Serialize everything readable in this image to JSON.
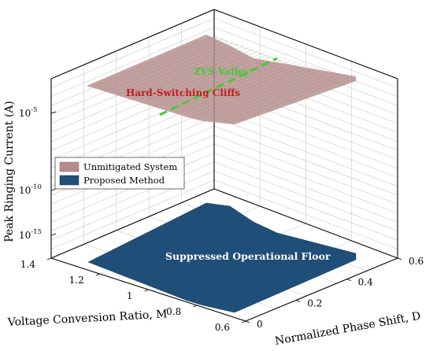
{
  "chart_data": {
    "type": "surface3d",
    "xlabel": "Normalized Phase Shift, D",
    "ylabel": "Voltage Conversion Ratio, M",
    "zlabel": "Peak Ringing Current (A)",
    "x_ticks": [
      "0",
      "0.2",
      "0.4",
      "0.6"
    ],
    "y_ticks": [
      "0.6",
      "0.8",
      "1",
      "1.2",
      "1.4"
    ],
    "z_ticks": [
      {
        "base": "10",
        "exp": "-15"
      },
      {
        "base": "10",
        "exp": "-10"
      },
      {
        "base": "10",
        "exp": "-5"
      }
    ],
    "zscale": "log",
    "xlim": [
      0,
      0.6
    ],
    "ylim": [
      0.6,
      1.4
    ],
    "zlim_log10": [
      -19,
      1
    ],
    "series": [
      {
        "name": "Unmitigated System",
        "color": "#b58c8c",
        "z_log10_approx": -3
      },
      {
        "name": "Proposed Method",
        "color": "#1f4e79",
        "z_log10_approx": -17
      }
    ],
    "legend": {
      "position": "left",
      "items": [
        "Unmitigated System",
        "Proposed Method"
      ]
    },
    "annotations": [
      {
        "text": "ZVS Valley",
        "color": "#44cc33"
      },
      {
        "text": "Hard-Switching Cliffs",
        "color": "#c41e1e"
      },
      {
        "text": "Suppressed Operational Floor",
        "color": "#ffffff"
      }
    ],
    "grid": true
  }
}
